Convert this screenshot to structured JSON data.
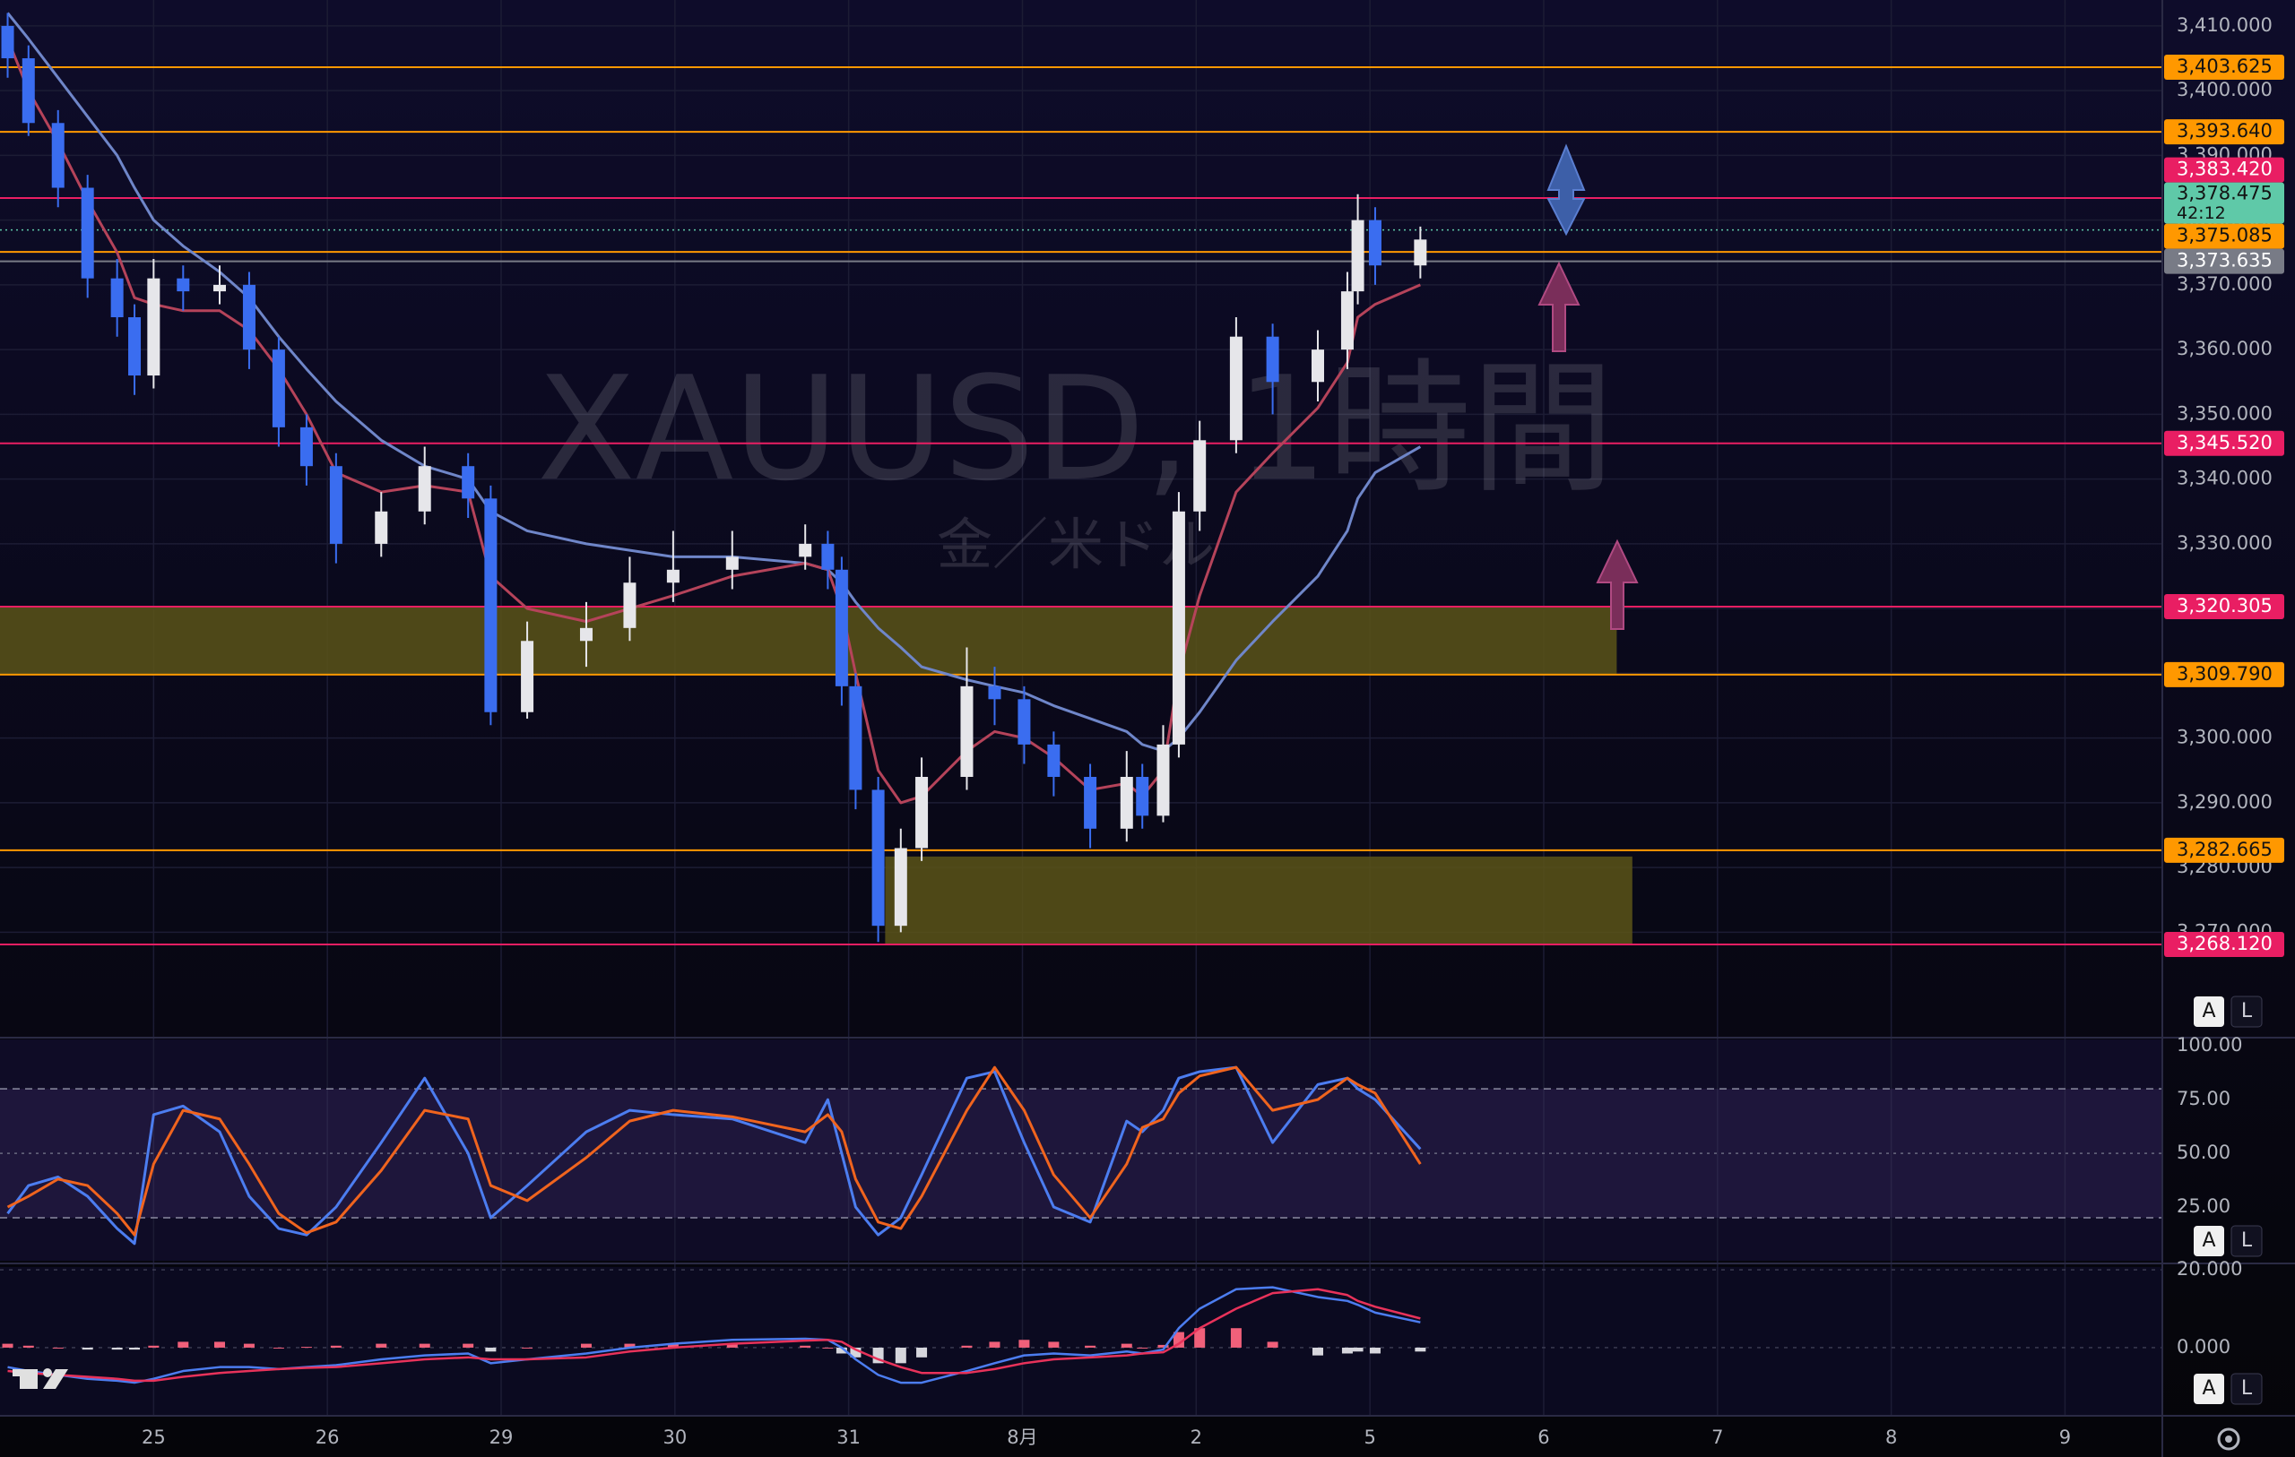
{
  "chart_data": {
    "type": "candlestick",
    "watermark": "XAUUSD, 1時間",
    "watermark_sub": "金／米ドル",
    "xlim": [
      -0.884,
      11.56
    ],
    "xticks": [
      {
        "value": 0,
        "label": "25"
      },
      {
        "value": 1,
        "label": "26"
      },
      {
        "value": 2,
        "label": "29"
      },
      {
        "value": 3,
        "label": "30"
      },
      {
        "value": 4,
        "label": "31"
      },
      {
        "value": 5,
        "label": "8月"
      },
      {
        "value": 6,
        "label": "2"
      },
      {
        "value": 7,
        "label": "5"
      },
      {
        "value": 8,
        "label": "6"
      },
      {
        "value": 9,
        "label": "7"
      },
      {
        "value": 10,
        "label": "8"
      },
      {
        "value": 11,
        "label": "9"
      }
    ],
    "ylim": [
      3254,
      3414
    ],
    "yticks": [
      {
        "value": 3270,
        "label": "3,270.000"
      },
      {
        "value": 3280,
        "label": "3,280.000"
      },
      {
        "value": 3290,
        "label": "3,290.000"
      },
      {
        "value": 3300,
        "label": "3,300.000"
      },
      {
        "value": 3310,
        "label": "3,310.000"
      },
      {
        "value": 3320,
        "label": "3,320.000"
      },
      {
        "value": 3330,
        "label": "3,330.000"
      },
      {
        "value": 3340,
        "label": "3,340.000"
      },
      {
        "value": 3350,
        "label": "3,350.000"
      },
      {
        "value": 3360,
        "label": "3,360.000"
      },
      {
        "value": 3370,
        "label": "3,370.000"
      },
      {
        "value": 3380,
        "label": "3,380.000"
      },
      {
        "value": 3390,
        "label": "3,390.000"
      },
      {
        "value": 3400,
        "label": "3,400.000"
      },
      {
        "value": 3410,
        "label": "3,410.000"
      }
    ],
    "grid": true,
    "up_color": "#e6e6ea",
    "down_color": "#3a6df0",
    "candles": {
      "x": [
        -0.84,
        -0.72,
        -0.55,
        -0.38,
        -0.21,
        -0.11,
        0,
        0.17,
        0.38,
        0.55,
        0.72,
        0.88,
        1.05,
        1.31,
        1.56,
        1.81,
        1.94,
        2.15,
        2.49,
        2.74,
        2.99,
        3.33,
        3.75,
        3.88,
        3.96,
        4.04,
        4.17,
        4.3,
        4.42,
        4.68,
        4.84,
        5.01,
        5.18,
        5.39,
        5.6,
        5.69,
        5.81,
        5.9,
        6.02,
        6.23,
        6.44,
        6.7,
        6.87,
        6.93,
        7.03,
        7.29
      ],
      "open": [
        3410,
        3405,
        3395,
        3385,
        3371,
        3365,
        3356,
        3371,
        3369,
        3370,
        3360,
        3348,
        3342,
        3330,
        3335,
        3342,
        3337,
        3304,
        3315,
        3317,
        3324,
        3326,
        3328,
        3330,
        3326,
        3308,
        3292,
        3271,
        3283,
        3294,
        3308,
        3306,
        3299,
        3294,
        3286,
        3294,
        3288,
        3299,
        3335,
        3346,
        3362,
        3355,
        3360,
        3369,
        3380,
        3373
      ],
      "high": [
        3412,
        3407,
        3397,
        3387,
        3374,
        3367,
        3374,
        3373,
        3373,
        3372,
        3362,
        3350,
        3344,
        3338,
        3345,
        3344,
        3339,
        3318,
        3321,
        3328,
        3332,
        3332,
        3333,
        3332,
        3328,
        3310,
        3294,
        3286,
        3297,
        3314,
        3311,
        3308,
        3301,
        3296,
        3298,
        3296,
        3302,
        3338,
        3349,
        3365,
        3364,
        3363,
        3372,
        3384,
        3382,
        3379
      ],
      "low": [
        3402,
        3393,
        3382,
        3368,
        3362,
        3353,
        3354,
        3366,
        3367,
        3357,
        3345,
        3339,
        3327,
        3328,
        3333,
        3334,
        3302,
        3303,
        3311,
        3315,
        3321,
        3323,
        3326,
        3323,
        3305,
        3289,
        3268.5,
        3270,
        3281,
        3292,
        3302,
        3296,
        3291,
        3283,
        3284,
        3286,
        3287,
        3297,
        3332,
        3344,
        3350,
        3352,
        3357,
        3367,
        3370,
        3371
      ],
      "close": [
        3405,
        3395,
        3385,
        3371,
        3365,
        3356,
        3371,
        3369,
        3370,
        3360,
        3348,
        3342,
        3330,
        3335,
        3342,
        3337,
        3304,
        3315,
        3317,
        3324,
        3326,
        3328,
        3330,
        3326,
        3308,
        3292,
        3271,
        3283,
        3294,
        3308,
        3306,
        3299,
        3294,
        3286,
        3294,
        3288,
        3299,
        3335,
        3346,
        3362,
        3355,
        3360,
        3369,
        3380,
        3373,
        3377
      ]
    },
    "ema_lines": [
      {
        "color": "#6f86c9",
        "values": [
          3412,
          3408,
          3402,
          3396,
          3390,
          3385,
          3380,
          3376,
          3372,
          3368,
          3362,
          3357,
          3352,
          3346,
          3342,
          3340,
          3335,
          3332,
          3330,
          3329,
          3328,
          3328,
          3327,
          3326,
          3324,
          3321,
          3317,
          3314,
          3311,
          3309,
          3308,
          3307,
          3305,
          3303,
          3301,
          3299,
          3298,
          3300,
          3304,
          3312,
          3318,
          3325,
          3332,
          3337,
          3341,
          3345
        ]
      },
      {
        "color": "#b5435a",
        "values": [
          3408,
          3400,
          3392,
          3383,
          3375,
          3368,
          3367,
          3366,
          3366,
          3363,
          3357,
          3350,
          3341,
          3338,
          3339,
          3338,
          3325,
          3320,
          3318,
          3320,
          3322,
          3325,
          3327,
          3326,
          3320,
          3310,
          3295,
          3290,
          3291,
          3298,
          3301,
          3300,
          3297,
          3292,
          3293,
          3291,
          3295,
          3310,
          3322,
          3338,
          3344,
          3351,
          3358,
          3365,
          3367,
          3370
        ]
      }
    ],
    "zones": [
      {
        "x": [
          -0.884,
          8.42
        ],
        "y": [
          3309.79,
          3320.305
        ],
        "color": "#5b5318"
      },
      {
        "x": [
          4.21,
          8.51
        ],
        "y": [
          3268.12,
          3281.7
        ],
        "color": "#5b5318"
      }
    ],
    "levels": [
      {
        "value": 3403.625,
        "label": "3,403.625",
        "color": "#ff9800",
        "text_color": "#131313"
      },
      {
        "value": 3393.64,
        "label": "3,393.640",
        "color": "#ff9800",
        "text_color": "#131313"
      },
      {
        "value": 3383.42,
        "label": "3,383.420",
        "color": "#e91e63",
        "text_color": "#ffffff"
      },
      {
        "value": 3375.085,
        "label": "3,375.085",
        "color": "#ff9800",
        "text_color": "#131313"
      },
      {
        "value": 3373.635,
        "label": "3,373.635",
        "color": "#787b86",
        "text_color": "#ffffff"
      },
      {
        "value": 3345.52,
        "label": "3,345.520",
        "color": "#e91e63",
        "text_color": "#ffffff"
      },
      {
        "value": 3320.305,
        "label": "3,320.305",
        "color": "#e91e63",
        "text_color": "#ffffff"
      },
      {
        "value": 3309.79,
        "label": "3,309.790",
        "color": "#ff9800",
        "text_color": "#131313"
      },
      {
        "value": 3282.665,
        "label": "3,282.665",
        "color": "#ff9800",
        "text_color": "#131313"
      },
      {
        "value": 3268.12,
        "label": "3,268.120",
        "color": "#e91e63",
        "text_color": "#ffffff"
      }
    ],
    "current": {
      "value": 3378.475,
      "label": "3,378.475",
      "countdown": "42:12",
      "color": "#5fc9a8",
      "text_color": "#131313"
    },
    "controls": {
      "auto": "A",
      "log": "L"
    },
    "stoch": {
      "ylim": [
        0,
        103
      ],
      "yticks": [
        {
          "value": 25,
          "label": "25.00"
        },
        {
          "value": 50,
          "label": "50.00"
        },
        {
          "value": 75,
          "label": "75.00"
        },
        {
          "value": 100,
          "label": "100.00"
        }
      ],
      "bands": [
        20,
        80
      ],
      "midline": 50,
      "band_color": "#7e57c2",
      "series": [
        {
          "color": "#4c7df0",
          "values": [
            22,
            35,
            39,
            30,
            15,
            8,
            68,
            72,
            60,
            30,
            15,
            12,
            25,
            55,
            85,
            50,
            20,
            35,
            60,
            70,
            68,
            66,
            55,
            75,
            50,
            25,
            12,
            20,
            40,
            85,
            88,
            55,
            25,
            18,
            65,
            60,
            70,
            85,
            88,
            90,
            55,
            82,
            85,
            80,
            75,
            52
          ]
        },
        {
          "color": "#f0641e",
          "values": [
            25,
            30,
            38,
            35,
            22,
            12,
            45,
            70,
            66,
            45,
            22,
            13,
            18,
            42,
            70,
            66,
            35,
            28,
            48,
            65,
            70,
            67,
            60,
            68,
            60,
            38,
            18,
            15,
            30,
            70,
            90,
            70,
            40,
            20,
            45,
            62,
            66,
            78,
            86,
            90,
            70,
            75,
            85,
            82,
            78,
            45
          ]
        }
      ]
    },
    "macd": {
      "ylim": [
        -17.5,
        20.7
      ],
      "yticks": [
        {
          "value": 0,
          "label": "0.000"
        },
        {
          "value": 20,
          "label": "20.000"
        }
      ],
      "hist_pos_color": "#f0607a",
      "hist_neg_color": "#d6d6dc",
      "hist": [
        1,
        0.5,
        0,
        -0.5,
        -0.5,
        -0.5,
        0.5,
        1.5,
        1.5,
        1,
        0,
        0.2,
        0.5,
        1,
        1,
        1,
        -1,
        0,
        1,
        1,
        1,
        1,
        0.5,
        0,
        -1.5,
        -2.5,
        -4,
        -4,
        -2.5,
        0.5,
        1.5,
        2,
        1.5,
        0.5,
        1,
        0,
        0.7,
        4,
        5,
        5,
        1.5,
        -2,
        -1.5,
        -1,
        -1.5,
        -1
      ],
      "series": [
        {
          "color": "#4c7df0",
          "values": [
            -5,
            -6,
            -7,
            -8,
            -8.5,
            -9,
            -8,
            -6,
            -5,
            -5,
            -5.5,
            -5,
            -4.5,
            -3,
            -2,
            -1.5,
            -4,
            -3,
            -1.5,
            0,
            1,
            2,
            2.3,
            2,
            0,
            -3,
            -7,
            -9,
            -9,
            -6,
            -4,
            -2,
            -1.5,
            -2,
            -1,
            -1.5,
            -0.5,
            5,
            10,
            15,
            15.5,
            13,
            12,
            11,
            9,
            6.5
          ]
        },
        {
          "color": "#e8325a",
          "values": [
            -6,
            -6.5,
            -7,
            -7.5,
            -8,
            -8.5,
            -8.5,
            -7.5,
            -6.5,
            -6,
            -5.5,
            -5.2,
            -5,
            -4,
            -3,
            -2.5,
            -3,
            -3,
            -2.5,
            -1,
            0,
            1,
            1.8,
            2,
            1.5,
            -0.5,
            -3,
            -5,
            -6.5,
            -6.5,
            -5.5,
            -4,
            -3,
            -2.5,
            -2,
            -1.5,
            -1.2,
            1,
            5,
            10,
            14,
            15,
            13.5,
            12,
            10.5,
            7.5
          ]
        }
      ]
    }
  }
}
